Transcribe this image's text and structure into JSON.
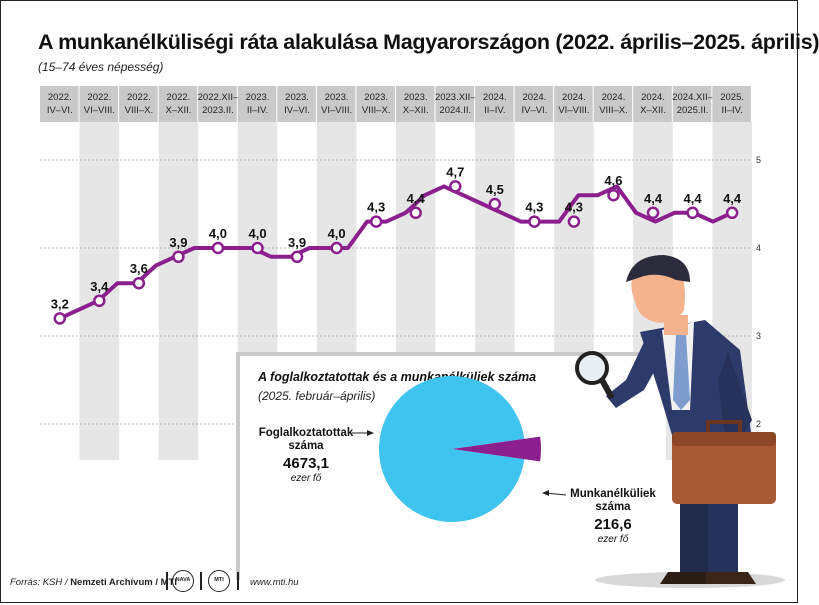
{
  "title": "A munkanélküliségi ráta alakulása Magyarországon (2022. április–2025. április)",
  "subtitle": "(15–74 éves népesség)",
  "colors": {
    "line": "#8b1f8e",
    "stripe": "#e6e6e6",
    "header": "#c9c9c9",
    "pie_main": "#3ec4ef",
    "pie_slice": "#8b1f8e"
  },
  "chart_data": [
    {
      "type": "line",
      "title": "A munkanélküliségi ráta alakulása Magyarországon (2022. április–2025. április)",
      "subtitle": "(15–74 éves népesség)",
      "ylim": [
        2,
        5
      ],
      "y_ticks": [
        "2",
        "3",
        "4",
        "5"
      ],
      "grid": true,
      "categories": [
        [
          "2022.",
          "IV–VI."
        ],
        [
          "2022.",
          "VI–VIII."
        ],
        [
          "2022.",
          "VIII–X."
        ],
        [
          "2022.",
          "X–XII."
        ],
        [
          "2022.XII–",
          "2023.II."
        ],
        [
          "2023.",
          "II–IV."
        ],
        [
          "2023.",
          "IV–VI."
        ],
        [
          "2023.",
          "VI–VIII."
        ],
        [
          "2023.",
          "VIII–X."
        ],
        [
          "2023.",
          "X–XII."
        ],
        [
          "2023.XII–",
          "2024.II."
        ],
        [
          "2024.",
          "II–IV."
        ],
        [
          "2024.",
          "IV–VI."
        ],
        [
          "2024.",
          "VI–VIII."
        ],
        [
          "2024.",
          "VIII–X."
        ],
        [
          "2024.",
          "X–XII."
        ],
        [
          "2024.XII–",
          "2025.II."
        ],
        [
          "2025.",
          "II–IV."
        ]
      ],
      "labeled_values": [
        3.2,
        3.4,
        3.6,
        3.9,
        4.0,
        4.0,
        3.9,
        4.0,
        4.3,
        4.4,
        4.7,
        4.5,
        4.3,
        4.3,
        4.6,
        4.4,
        4.4,
        4.4
      ],
      "value_labels": [
        "3,2",
        "3,4",
        "3,6",
        "3,9",
        "4,0",
        "4,0",
        "3,9",
        "4,0",
        "4,3",
        "4,4",
        "4,7",
        "4,5",
        "4,3",
        "4,3",
        "4,6",
        "4,4",
        "4,4",
        "4,4"
      ],
      "monthly_values": [
        3.2,
        3.3,
        3.4,
        3.6,
        3.6,
        3.8,
        3.9,
        4.0,
        4.0,
        4.0,
        4.0,
        3.9,
        3.9,
        4.0,
        4.0,
        4.0,
        4.3,
        4.3,
        4.4,
        4.6,
        4.7,
        4.6,
        4.5,
        4.4,
        4.3,
        4.3,
        4.3,
        4.6,
        4.6,
        4.7,
        4.4,
        4.3,
        4.4,
        4.4,
        4.3,
        4.4
      ]
    },
    {
      "type": "pie",
      "title": "A foglalkoztatottak és a munkanélküliek száma",
      "subtitle": "(2025. február–április)",
      "slices": [
        {
          "label": [
            "Foglalkoztatottak",
            "száma"
          ],
          "value": 4673.1,
          "value_label": "4673,1",
          "unit": "ezer fő"
        },
        {
          "label": [
            "Munkanélküliek",
            "száma"
          ],
          "value": 216.6,
          "value_label": "216,6",
          "unit": "ezer fő"
        }
      ]
    }
  ],
  "footer": {
    "source_prefix": "Forrás: KSH / ",
    "source_bold": "Nemzeti Archívum",
    "source_sep": " / ",
    "source_mti": "MTI",
    "logo1": "NAVA",
    "logo2": "MTI",
    "website": "www.mti.hu"
  }
}
